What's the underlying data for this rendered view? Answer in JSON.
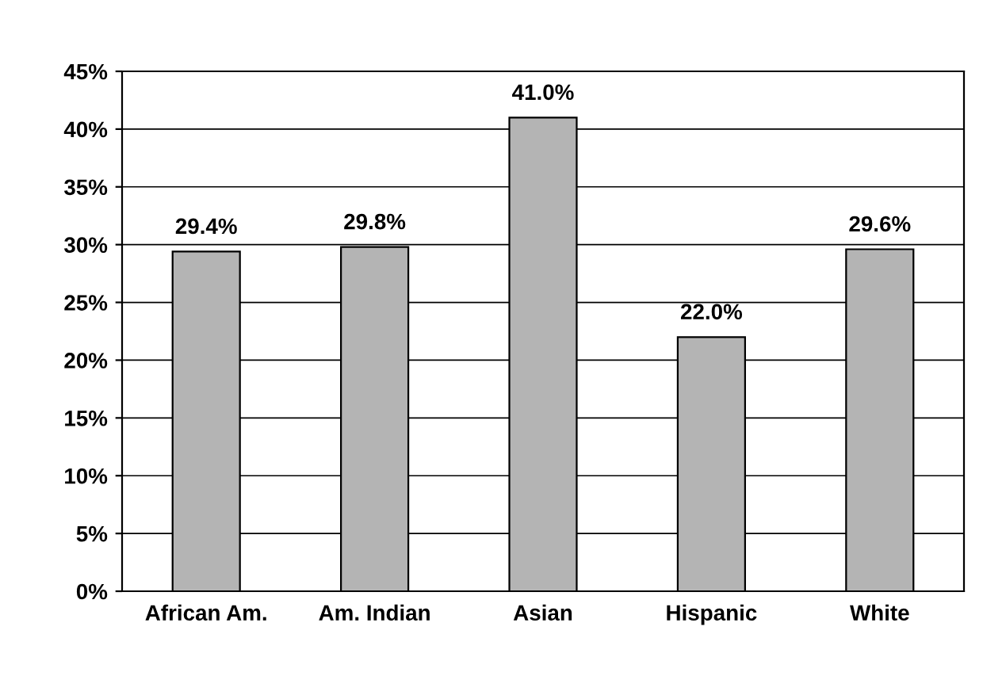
{
  "chart_data": {
    "type": "bar",
    "categories": [
      "African Am.",
      "Am. Indian",
      "Asian",
      "Hispanic",
      "White"
    ],
    "values": [
      29.4,
      29.8,
      41.0,
      22.0,
      29.6
    ],
    "value_labels": [
      "29.4%",
      "29.8%",
      "41.0%",
      "22.0%",
      "29.6%"
    ],
    "color": "#b4b4b4",
    "ylim": [
      0,
      45
    ],
    "yticks": [
      {
        "value": 0,
        "label": "0%"
      },
      {
        "value": 5,
        "label": "5%"
      },
      {
        "value": 10,
        "label": "10%"
      },
      {
        "value": 15,
        "label": "15%"
      },
      {
        "value": 20,
        "label": "20%"
      },
      {
        "value": 25,
        "label": "25%"
      },
      {
        "value": 30,
        "label": "30%"
      },
      {
        "value": 35,
        "label": "35%"
      },
      {
        "value": 40,
        "label": "40%"
      },
      {
        "value": 45,
        "label": "45%"
      }
    ],
    "grid": "y",
    "legend": false
  }
}
